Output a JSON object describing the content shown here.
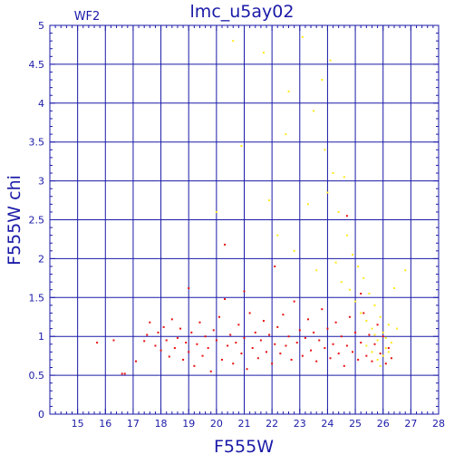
{
  "chart_data": {
    "type": "scatter",
    "title": "lmc_u5ay02",
    "panel_label": "WF2",
    "xlabel": "F555W",
    "ylabel": "F555W  chi",
    "xlim": [
      14,
      28
    ],
    "ylim": [
      0,
      5
    ],
    "xticks": [
      "15",
      "16",
      "17",
      "18",
      "19",
      "20",
      "21",
      "22",
      "23",
      "24",
      "25",
      "26",
      "27",
      "28"
    ],
    "yticks": [
      "0",
      "0.5",
      "1",
      "1.5",
      "2",
      "2.5",
      "3",
      "3.5",
      "4",
      "4.5",
      "5"
    ],
    "grid": true,
    "series": [
      {
        "color": "#e81010",
        "points": [
          [
            15.7,
            0.92
          ],
          [
            16.3,
            0.95
          ],
          [
            16.6,
            0.52
          ],
          [
            16.7,
            0.52
          ],
          [
            17.1,
            0.68
          ],
          [
            17.4,
            0.94
          ],
          [
            17.5,
            1.02
          ],
          [
            17.6,
            1.18
          ],
          [
            17.8,
            0.88
          ],
          [
            17.9,
            1.05
          ],
          [
            18.0,
            0.82
          ],
          [
            18.1,
            1.12
          ],
          [
            18.2,
            0.95
          ],
          [
            18.3,
            0.74
          ],
          [
            18.4,
            1.22
          ],
          [
            18.5,
            0.85
          ],
          [
            18.6,
            0.98
          ],
          [
            18.7,
            1.1
          ],
          [
            18.8,
            0.7
          ],
          [
            18.9,
            0.92
          ],
          [
            19.0,
            1.62
          ],
          [
            19.0,
            0.8
          ],
          [
            19.1,
            1.05
          ],
          [
            19.2,
            0.62
          ],
          [
            19.3,
            0.9
          ],
          [
            19.4,
            1.18
          ],
          [
            19.5,
            0.75
          ],
          [
            19.6,
            1.0
          ],
          [
            19.7,
            0.85
          ],
          [
            19.8,
            0.55
          ],
          [
            19.9,
            1.08
          ],
          [
            20.0,
            0.95
          ],
          [
            20.1,
            1.25
          ],
          [
            20.2,
            0.7
          ],
          [
            20.3,
            2.18
          ],
          [
            20.3,
            1.48
          ],
          [
            20.4,
            0.88
          ],
          [
            20.5,
            1.02
          ],
          [
            20.6,
            0.65
          ],
          [
            20.7,
            0.92
          ],
          [
            20.8,
            1.15
          ],
          [
            20.9,
            0.78
          ],
          [
            21.0,
            1.58
          ],
          [
            21.0,
            0.98
          ],
          [
            21.1,
            0.58
          ],
          [
            21.2,
            1.3
          ],
          [
            21.3,
            0.85
          ],
          [
            21.4,
            1.05
          ],
          [
            21.5,
            0.72
          ],
          [
            21.6,
            0.95
          ],
          [
            21.7,
            1.2
          ],
          [
            21.8,
            0.8
          ],
          [
            21.9,
            1.02
          ],
          [
            22.0,
            0.65
          ],
          [
            22.1,
            1.9
          ],
          [
            22.1,
            0.9
          ],
          [
            22.2,
            1.12
          ],
          [
            22.3,
            0.78
          ],
          [
            22.4,
            1.28
          ],
          [
            22.5,
            0.88
          ],
          [
            22.6,
            1.0
          ],
          [
            22.7,
            0.7
          ],
          [
            22.8,
            1.45
          ],
          [
            22.9,
            0.92
          ],
          [
            23.0,
            1.08
          ],
          [
            23.1,
            0.75
          ],
          [
            23.2,
            0.98
          ],
          [
            23.3,
            1.22
          ],
          [
            23.4,
            0.82
          ],
          [
            23.5,
            1.05
          ],
          [
            23.6,
            0.68
          ],
          [
            23.7,
            0.95
          ],
          [
            23.8,
            1.35
          ],
          [
            23.9,
            0.85
          ],
          [
            24.0,
            1.1
          ],
          [
            24.1,
            0.72
          ],
          [
            24.2,
            0.9
          ],
          [
            24.3,
            1.18
          ],
          [
            24.4,
            0.78
          ],
          [
            24.5,
            1.0
          ],
          [
            24.6,
            0.62
          ],
          [
            24.7,
            0.88
          ],
          [
            24.8,
            1.25
          ],
          [
            24.9,
            0.8
          ],
          [
            25.0,
            1.05
          ],
          [
            25.1,
            0.7
          ],
          [
            25.2,
            0.92
          ],
          [
            25.3,
            1.3
          ],
          [
            25.4,
            0.75
          ],
          [
            25.5,
            1.02
          ],
          [
            25.6,
            0.68
          ],
          [
            25.7,
            0.9
          ],
          [
            25.8,
            1.15
          ],
          [
            25.9,
            0.78
          ],
          [
            26.0,
            1.0
          ],
          [
            26.1,
            0.65
          ],
          [
            26.2,
            0.85
          ],
          [
            26.3,
            0.72
          ],
          [
            24.7,
            2.55
          ],
          [
            25.2,
            1.55
          ]
        ]
      },
      {
        "color": "#ffe81a",
        "points": [
          [
            20.0,
            2.6
          ],
          [
            20.6,
            4.8
          ],
          [
            20.9,
            3.45
          ],
          [
            21.7,
            4.65
          ],
          [
            21.9,
            2.75
          ],
          [
            22.2,
            2.3
          ],
          [
            22.5,
            3.6
          ],
          [
            22.6,
            4.15
          ],
          [
            22.8,
            2.1
          ],
          [
            23.1,
            4.85
          ],
          [
            23.3,
            2.7
          ],
          [
            23.5,
            3.9
          ],
          [
            23.6,
            1.85
          ],
          [
            23.8,
            4.3
          ],
          [
            23.9,
            3.4
          ],
          [
            24.0,
            2.85
          ],
          [
            24.1,
            4.55
          ],
          [
            24.2,
            3.1
          ],
          [
            24.3,
            1.95
          ],
          [
            24.4,
            2.6
          ],
          [
            24.5,
            1.7
          ],
          [
            24.6,
            3.05
          ],
          [
            24.7,
            2.3
          ],
          [
            24.8,
            1.6
          ],
          [
            24.9,
            2.05
          ],
          [
            25.0,
            1.45
          ],
          [
            25.1,
            1.9
          ],
          [
            25.2,
            1.3
          ],
          [
            25.3,
            1.75
          ],
          [
            25.4,
            1.2
          ],
          [
            25.5,
            1.55
          ],
          [
            25.6,
            1.1
          ],
          [
            25.7,
            1.4
          ],
          [
            25.8,
            0.95
          ],
          [
            25.9,
            1.25
          ],
          [
            26.0,
            1.05
          ],
          [
            26.1,
            0.85
          ],
          [
            26.2,
            1.15
          ],
          [
            26.3,
            0.92
          ],
          [
            26.4,
            1.62
          ],
          [
            26.5,
            1.1
          ],
          [
            26.8,
            1.85
          ],
          [
            25.6,
            0.8
          ],
          [
            25.8,
            0.7
          ],
          [
            26.0,
            0.75
          ],
          [
            25.4,
            0.88
          ],
          [
            25.9,
            0.62
          ],
          [
            26.1,
            0.98
          ],
          [
            25.7,
            1.02
          ],
          [
            26.2,
            0.8
          ]
        ]
      }
    ]
  }
}
